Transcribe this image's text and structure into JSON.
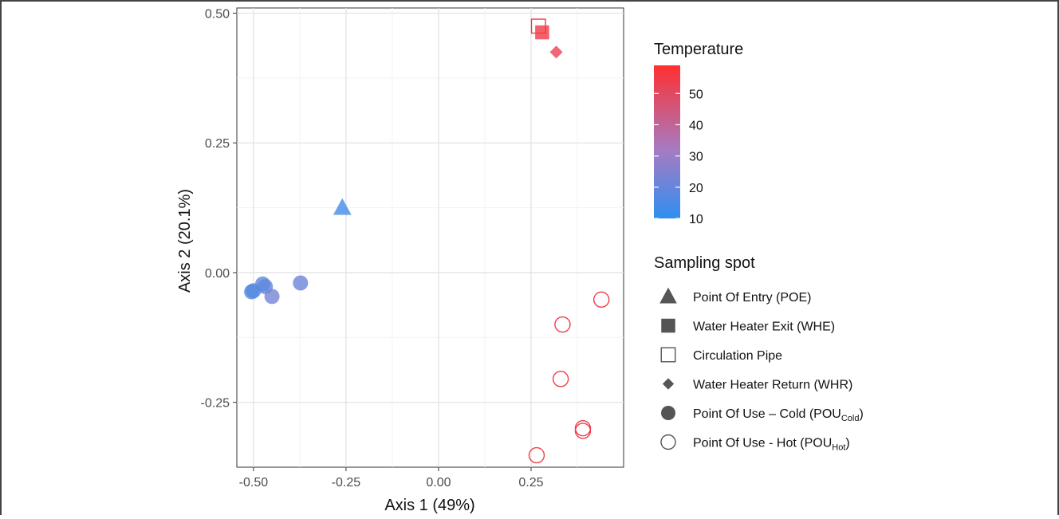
{
  "chart_data": {
    "type": "scatter",
    "xlabel": "Axis 1 (49%)",
    "ylabel": "Axis 2 (20.1%)",
    "xlim": [
      -0.545,
      0.5
    ],
    "ylim": [
      -0.375,
      0.51
    ],
    "x_ticks": [
      -0.5,
      -0.25,
      0.0,
      0.25
    ],
    "x_tick_labels": [
      "-0.50",
      "-0.25",
      "0.00",
      "0.25"
    ],
    "y_ticks": [
      -0.25,
      0.0,
      0.25,
      0.5
    ],
    "y_tick_labels": [
      "-0.25",
      "0.00",
      "0.25",
      "0.50"
    ],
    "grid": true,
    "legend_placement": "right",
    "color_legend": {
      "title": "Temperature",
      "min": 10,
      "max": 59,
      "low_color": "#2f8ff0",
      "mid_color": "#a77bc2",
      "high_color": "#ff2f2f",
      "ticks": [
        10,
        20,
        30,
        40,
        50
      ],
      "tick_labels": [
        "10",
        "20",
        "30",
        "40",
        "50"
      ]
    },
    "shape_legend": {
      "title": "Sampling spot",
      "items": [
        {
          "shape": "triangle-filled",
          "label": "Point Of Entry (POE)"
        },
        {
          "shape": "square-filled",
          "label": "Water Heater Exit (WHE)"
        },
        {
          "shape": "square-open",
          "label": "Circulation Pipe"
        },
        {
          "shape": "diamond-filled",
          "label": "Water Heater Return (WHR)"
        },
        {
          "shape": "circle-filled",
          "label": "Point Of Use – Cold (POU",
          "sub": "Cold",
          "suffix": ")"
        },
        {
          "shape": "circle-open",
          "label": "Point Of Use - Hot (POU",
          "sub": "Hot",
          "suffix": ")"
        }
      ]
    },
    "points": [
      {
        "group": "Point Of Entry (POE)",
        "shape": "triangle-filled",
        "x": -0.26,
        "y": 0.125,
        "temperature": 14
      },
      {
        "group": "Water Heater Exit (WHE)",
        "shape": "square-filled",
        "x": 0.28,
        "y": 0.463,
        "temperature": 55
      },
      {
        "group": "Circulation Pipe",
        "shape": "square-open",
        "x": 0.27,
        "y": 0.475,
        "temperature": 55
      },
      {
        "group": "Water Heater Return (WHR)",
        "shape": "diamond-filled",
        "x": 0.318,
        "y": 0.425,
        "temperature": 52
      },
      {
        "group": "Point Of Use – Cold (POUCold)",
        "shape": "circle-filled",
        "x": -0.505,
        "y": -0.037,
        "temperature": 17
      },
      {
        "group": "Point Of Use – Cold (POUCold)",
        "shape": "circle-filled",
        "x": -0.5,
        "y": -0.035,
        "temperature": 17
      },
      {
        "group": "Point Of Use – Cold (POUCold)",
        "shape": "circle-filled",
        "x": -0.475,
        "y": -0.022,
        "temperature": 18
      },
      {
        "group": "Point Of Use – Cold (POUCold)",
        "shape": "circle-filled",
        "x": -0.468,
        "y": -0.027,
        "temperature": 19
      },
      {
        "group": "Point Of Use – Cold (POUCold)",
        "shape": "circle-filled",
        "x": -0.45,
        "y": -0.046,
        "temperature": 23
      },
      {
        "group": "Point Of Use – Cold (POUCold)",
        "shape": "circle-filled",
        "x": -0.373,
        "y": -0.02,
        "temperature": 21
      },
      {
        "group": "Point Of Use - Hot (POUHot)",
        "shape": "circle-open",
        "x": 0.44,
        "y": -0.052,
        "temperature": 54
      },
      {
        "group": "Point Of Use - Hot (POUHot)",
        "shape": "circle-open",
        "x": 0.335,
        "y": -0.1,
        "temperature": 54
      },
      {
        "group": "Point Of Use - Hot (POUHot)",
        "shape": "circle-open",
        "x": 0.33,
        "y": -0.205,
        "temperature": 54
      },
      {
        "group": "Point Of Use - Hot (POUHot)",
        "shape": "circle-open",
        "x": 0.39,
        "y": -0.3,
        "temperature": 54
      },
      {
        "group": "Point Of Use - Hot (POUHot)",
        "shape": "circle-open",
        "x": 0.39,
        "y": -0.305,
        "temperature": 54
      },
      {
        "group": "Point Of Use - Hot (POUHot)",
        "shape": "circle-open",
        "x": 0.265,
        "y": -0.352,
        "temperature": 54
      }
    ]
  }
}
